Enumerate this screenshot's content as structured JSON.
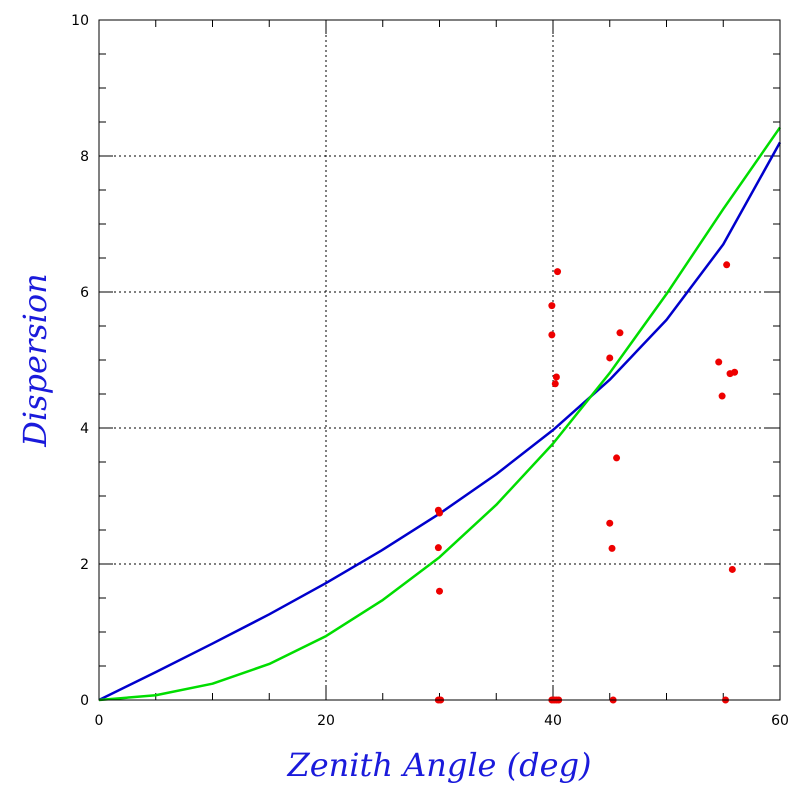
{
  "chart_data": {
    "type": "scatter",
    "xlabel": "Zenith Angle (deg)",
    "ylabel": "Dispersion",
    "xlim": [
      0,
      60
    ],
    "ylim": [
      0,
      10
    ],
    "x_ticks": [
      0,
      20,
      40,
      60
    ],
    "y_ticks": [
      0,
      2,
      4,
      6,
      8,
      10
    ],
    "x_tick_labels": [
      "0",
      "20",
      "40",
      "60"
    ],
    "y_tick_labels": [
      "0",
      "2",
      "4",
      "6",
      "8",
      "10"
    ],
    "x_minor_step": 5,
    "y_minor_step": 0.5,
    "grid": true,
    "grid_x": [
      20,
      40
    ],
    "grid_y": [
      2,
      4,
      6,
      8
    ],
    "colors": {
      "axis_title": "#1a1adb",
      "curve_blue": "#0000cc",
      "curve_green": "#00dd00",
      "points": "#ee0000",
      "grid": "#000000"
    },
    "curves": [
      {
        "color": "#0000cc",
        "x": [
          0,
          5,
          10,
          15,
          20,
          25,
          30,
          35,
          40,
          45,
          50,
          55,
          60
        ],
        "y": [
          0,
          0.41,
          0.83,
          1.26,
          1.72,
          2.21,
          2.74,
          3.32,
          3.97,
          4.71,
          5.59,
          6.7,
          8.2
        ]
      },
      {
        "color": "#00dd00",
        "x": [
          0,
          5,
          10,
          15,
          20,
          25,
          30,
          35,
          40,
          45,
          50,
          55,
          60
        ],
        "y": [
          0,
          0.07,
          0.24,
          0.53,
          0.94,
          1.47,
          2.1,
          2.87,
          3.77,
          4.81,
          5.97,
          7.22,
          8.42
        ]
      }
    ],
    "points": [
      {
        "x": 29.9,
        "y": 2.79
      },
      {
        "x": 30.0,
        "y": 2.75
      },
      {
        "x": 29.9,
        "y": 2.24
      },
      {
        "x": 30.0,
        "y": 1.6
      },
      {
        "x": 29.9,
        "y": 0.0
      },
      {
        "x": 30.1,
        "y": 0.0
      },
      {
        "x": 39.9,
        "y": 5.8
      },
      {
        "x": 40.4,
        "y": 6.3
      },
      {
        "x": 39.9,
        "y": 5.37
      },
      {
        "x": 40.3,
        "y": 4.75
      },
      {
        "x": 40.2,
        "y": 4.65
      },
      {
        "x": 39.9,
        "y": 0.0
      },
      {
        "x": 40.1,
        "y": 0.0
      },
      {
        "x": 40.3,
        "y": 0.0
      },
      {
        "x": 40.5,
        "y": 0.0
      },
      {
        "x": 45.0,
        "y": 5.03
      },
      {
        "x": 45.9,
        "y": 5.4
      },
      {
        "x": 45.6,
        "y": 3.56
      },
      {
        "x": 45.0,
        "y": 2.6
      },
      {
        "x": 45.2,
        "y": 2.23
      },
      {
        "x": 45.3,
        "y": 0.0
      },
      {
        "x": 54.6,
        "y": 4.97
      },
      {
        "x": 55.3,
        "y": 6.4
      },
      {
        "x": 54.9,
        "y": 4.47
      },
      {
        "x": 55.6,
        "y": 4.8
      },
      {
        "x": 56.0,
        "y": 4.82
      },
      {
        "x": 55.8,
        "y": 1.92
      },
      {
        "x": 55.2,
        "y": 0.0
      }
    ]
  }
}
